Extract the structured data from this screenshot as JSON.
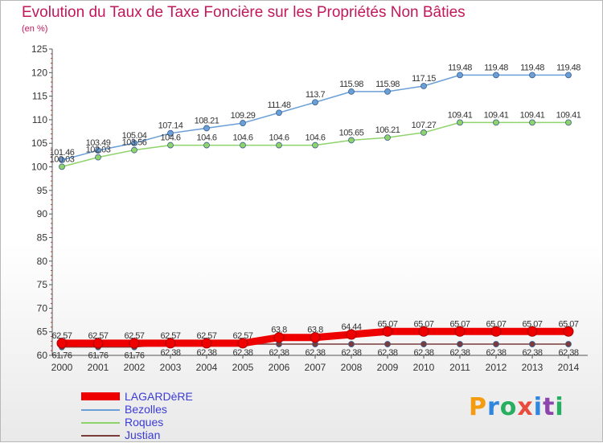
{
  "chart_data": {
    "type": "line",
    "title": "Evolution du Taux de Taxe Foncière sur les Propriétés Non Bâties",
    "subtitle": "(en %)",
    "x": [
      "2000",
      "2001",
      "2002",
      "2003",
      "2004",
      "2005",
      "2006",
      "2007",
      "2008",
      "2009",
      "2010",
      "2011",
      "2012",
      "2013",
      "2014"
    ],
    "ylim": [
      60,
      125
    ],
    "yticks": [
      60,
      65,
      70,
      75,
      80,
      85,
      90,
      95,
      100,
      105,
      110,
      115,
      120,
      125
    ],
    "grid": false,
    "legend_position": "bottom-left",
    "series": [
      {
        "name": "LAGARDèRE",
        "color": "#ee0000",
        "values": [
          62.57,
          62.57,
          62.57,
          62.57,
          62.57,
          62.57,
          63.8,
          63.8,
          64.44,
          65.07,
          65.07,
          65.07,
          65.07,
          65.07,
          65.07
        ],
        "labels": [
          "62.57",
          "62.57",
          "62.57",
          "62.57",
          "62.57",
          "62.57",
          "63.8",
          "63.8",
          "64.44",
          "65.07",
          "65.07",
          "65.07",
          "65.07",
          "65.07",
          "65.07"
        ]
      },
      {
        "name": "Bezolles",
        "color": "#6a9fd8",
        "values": [
          101.46,
          103.49,
          105.04,
          107.14,
          108.21,
          109.29,
          111.48,
          113.7,
          115.98,
          115.98,
          117.15,
          119.48,
          119.48,
          119.48,
          119.48
        ],
        "labels": [
          "101.46",
          "103.49",
          "105.04",
          "107.14",
          "108.21",
          "109.29",
          "111.48",
          "113.7",
          "115.98",
          "115.98",
          "117.15",
          "119.48",
          "119.48",
          "119.48",
          "119.48"
        ]
      },
      {
        "name": "Roques",
        "color": "#8fd36b",
        "values": [
          100.03,
          102.03,
          103.56,
          104.6,
          104.6,
          104.6,
          104.6,
          104.6,
          105.65,
          106.21,
          107.27,
          109.41,
          109.41,
          109.41,
          109.41
        ],
        "labels": [
          "100.03",
          "102.03",
          "103.56",
          "104.6",
          "104.6",
          "104.6",
          "104.6",
          "104.6",
          "105.65",
          "106.21",
          "107.27",
          "109.41",
          "109.41",
          "109.41",
          "109.41"
        ]
      },
      {
        "name": "Justian",
        "color": "#7a3b3b",
        "values": [
          61.76,
          61.76,
          61.76,
          62.38,
          62.38,
          62.38,
          62.38,
          62.38,
          62.38,
          62.38,
          62.38,
          62.38,
          62.38,
          62.38,
          62.38
        ],
        "labels": [
          "61.76",
          "61.76",
          "61.76",
          "62.38",
          "62.38",
          "62.38",
          "62.38",
          "62.38",
          "62.38",
          "62.38",
          "62.38",
          "62.38",
          "62.38",
          "62.38",
          "62.38"
        ]
      }
    ]
  },
  "legend": {
    "items": [
      {
        "label": "LAGARDèRE",
        "color": "#ee0000"
      },
      {
        "label": "Bezolles",
        "color": "#6a9fd8"
      },
      {
        "label": "Roques",
        "color": "#8fd36b"
      },
      {
        "label": "Justian",
        "color": "#7a3b3b"
      }
    ]
  },
  "logo": {
    "text": "Proxiti",
    "parts": [
      "P",
      "r",
      "o",
      "x",
      "i",
      "t",
      "i"
    ]
  }
}
